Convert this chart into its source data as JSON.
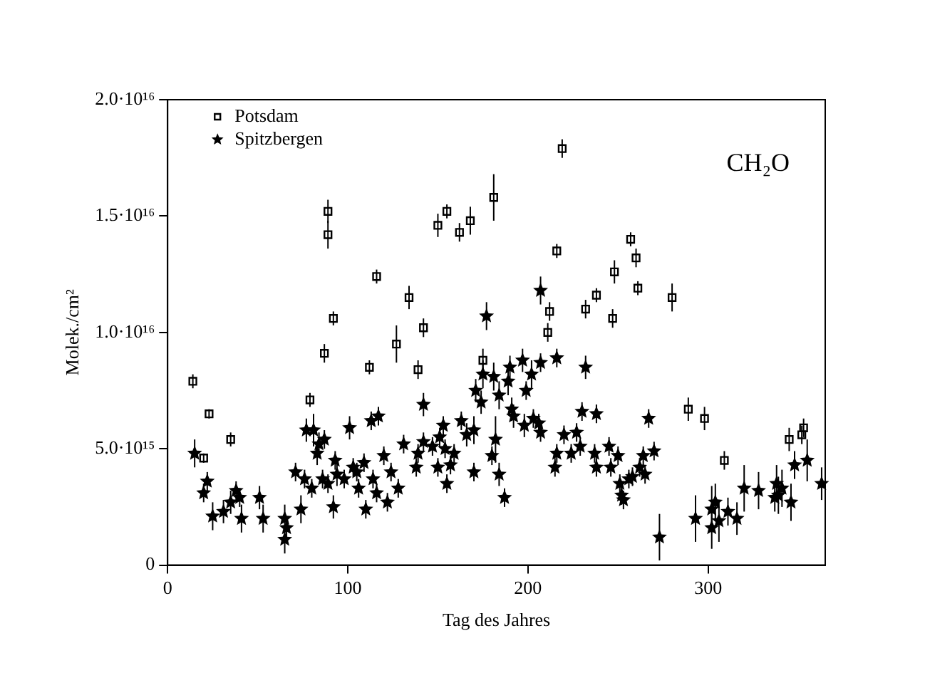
{
  "chart_data": {
    "type": "scatter",
    "xlabel": "Tag des Jahres",
    "ylabel": "Molek./cm²",
    "annotations": [
      "CH₂O"
    ],
    "xlim": [
      0,
      365
    ],
    "xticks": [
      0,
      100,
      200,
      300
    ],
    "ylim": [
      0,
      2e+16
    ],
    "yticks": [
      0,
      {
        "value": 5000000000000000.0,
        "label": "5.0·10¹⁵"
      },
      {
        "value": 1e+16,
        "label": "1.0·10¹⁶"
      },
      {
        "value": 1.5e+16,
        "label": "1.5·10¹⁶"
      },
      {
        "value": 2e+16,
        "label": "2.0·10¹⁶"
      }
    ],
    "grid": false,
    "legend": "top left",
    "series": [
      {
        "name": "Potsdam",
        "color": "#000000",
        "marker": "square",
        "x": [
          14,
          20,
          23,
          35,
          79,
          87,
          89,
          89,
          92,
          112,
          116,
          127,
          134,
          139,
          142,
          150,
          155,
          162,
          168,
          175,
          181,
          211,
          212,
          216,
          219,
          232,
          238,
          247,
          248,
          257,
          260,
          261,
          280,
          289,
          298,
          309,
          345,
          352,
          353
        ],
        "values": [
          7900000000000000.0,
          4600000000000000.0,
          6500000000000000.0,
          5400000000000000.0,
          7100000000000000.0,
          9100000000000000.0,
          1.52e+16,
          1.42e+16,
          1.06e+16,
          8500000000000000.0,
          1.24e+16,
          9500000000000000.0,
          1.15e+16,
          8400000000000000.0,
          1.02e+16,
          1.46e+16,
          1.52e+16,
          1.43e+16,
          1.48e+16,
          8800000000000000.0,
          1.58e+16,
          1e+16,
          1.09e+16,
          1.35e+16,
          1.79e+16,
          1.1e+16,
          1.16e+16,
          1.06e+16,
          1.26e+16,
          1.4e+16,
          1.32e+16,
          1.19e+16,
          1.15e+16,
          6700000000000000.0,
          6300000000000000.0,
          4500000000000000.0,
          5400000000000000.0,
          5600000000000000.0,
          5900000000000000.0
        ],
        "errors": [
          300000000000000.0,
          200000000000000.0,
          200000000000000.0,
          300000000000000.0,
          300000000000000.0,
          400000000000000.0,
          500000000000000.0,
          600000000000000.0,
          300000000000000.0,
          300000000000000.0,
          300000000000000.0,
          800000000000000.0,
          500000000000000.0,
          400000000000000.0,
          400000000000000.0,
          500000000000000.0,
          300000000000000.0,
          400000000000000.0,
          600000000000000.0,
          500000000000000.0,
          1000000000000000.0,
          400000000000000.0,
          400000000000000.0,
          300000000000000.0,
          400000000000000.0,
          400000000000000.0,
          300000000000000.0,
          400000000000000.0,
          500000000000000.0,
          300000000000000.0,
          400000000000000.0,
          300000000000000.0,
          600000000000000.0,
          500000000000000.0,
          500000000000000.0,
          400000000000000.0,
          500000000000000.0,
          400000000000000.0,
          400000000000000.0
        ]
      },
      {
        "name": "Spitzbergen",
        "color": "#000000",
        "marker": "star",
        "x": [
          15,
          20,
          22,
          25,
          31,
          35,
          38,
          40,
          41,
          51,
          53,
          65,
          65,
          66,
          71,
          74,
          76,
          77,
          80,
          81,
          83,
          84,
          86,
          87,
          89,
          92,
          93,
          94,
          98,
          101,
          103,
          105,
          106,
          109,
          110,
          113,
          114,
          116,
          117,
          120,
          122,
          124,
          128,
          131,
          138,
          139,
          142,
          142,
          147,
          150,
          151,
          153,
          154,
          155,
          157,
          159,
          163,
          166,
          170,
          170,
          171,
          174,
          175,
          177,
          180,
          181,
          182,
          184,
          184,
          187,
          189,
          190,
          191,
          192,
          197,
          198,
          199,
          202,
          203,
          206,
          207,
          207,
          207,
          215,
          216,
          216,
          220,
          224,
          227,
          229,
          230,
          232,
          237,
          238,
          238,
          245,
          246,
          250,
          251,
          252,
          253,
          256,
          258,
          262,
          264,
          265,
          267,
          270,
          273,
          293,
          302,
          302,
          304,
          306,
          311,
          316,
          320,
          328,
          337,
          338,
          339,
          341,
          346,
          348,
          355,
          363
        ],
        "values": [
          4800000000000000.0,
          3100000000000000.0,
          3600000000000000.0,
          2100000000000000.0,
          2300000000000000.0,
          2700000000000000.0,
          3200000000000000.0,
          2900000000000000.0,
          2000000000000000.0,
          2900000000000000.0,
          2000000000000000.0,
          2000000000000000.0,
          1100000000000000.0,
          1600000000000000.0,
          4000000000000000.0,
          2400000000000000.0,
          3700000000000000.0,
          5800000000000000.0,
          3300000000000000.0,
          5800000000000000.0,
          4800000000000000.0,
          5200000000000000.0,
          3700000000000000.0,
          5400000000000000.0,
          3500000000000000.0,
          2500000000000000.0,
          4500000000000000.0,
          3900000000000000.0,
          3700000000000000.0,
          5900000000000000.0,
          4200000000000000.0,
          4000000000000000.0,
          3300000000000000.0,
          4400000000000000.0,
          2400000000000000.0,
          6200000000000000.0,
          3700000000000000.0,
          3100000000000000.0,
          6400000000000000.0,
          4700000000000000.0,
          2700000000000000.0,
          4000000000000000.0,
          3300000000000000.0,
          5200000000000000.0,
          4200000000000000.0,
          4800000000000000.0,
          5300000000000000.0,
          6900000000000000.0,
          5100000000000000.0,
          4200000000000000.0,
          5500000000000000.0,
          6000000000000000.0,
          5000000000000000.0,
          3500000000000000.0,
          4300000000000000.0,
          4800000000000000.0,
          6200000000000000.0,
          5600000000000000.0,
          5800000000000000.0,
          4000000000000000.0,
          7500000000000000.0,
          7000000000000000.0,
          8200000000000000.0,
          1.07e+16,
          4700000000000000.0,
          8100000000000000.0,
          5400000000000000.0,
          3900000000000000.0,
          7300000000000000.0,
          2900000000000000.0,
          7900000000000000.0,
          8500000000000000.0,
          6700000000000000.0,
          6400000000000000.0,
          8800000000000000.0,
          6000000000000000.0,
          7500000000000000.0,
          8200000000000000.0,
          6300000000000000.0,
          6100000000000000.0,
          8700000000000000.0,
          1.18e+16,
          5700000000000000.0,
          4200000000000000.0,
          4800000000000000.0,
          8900000000000000.0,
          5600000000000000.0,
          4800000000000000.0,
          5700000000000000.0,
          5100000000000000.0,
          6600000000000000.0,
          8500000000000000.0,
          4800000000000000.0,
          4200000000000000.0,
          6500000000000000.0,
          5100000000000000.0,
          4200000000000000.0,
          4700000000000000.0,
          3500000000000000.0,
          3000000000000000.0,
          2800000000000000.0,
          3700000000000000.0,
          3800000000000000.0,
          4200000000000000.0,
          4700000000000000.0,
          3900000000000000.0,
          6300000000000000.0,
          4900000000000000.0,
          1200000000000000.0,
          2000000000000000.0,
          2400000000000000.0,
          1600000000000000.0,
          2700000000000000.0,
          1900000000000000.0,
          2300000000000000.0,
          2000000000000000.0,
          3300000000000000.0,
          3200000000000000.0,
          2900000000000000.0,
          3500000000000000.0,
          3000000000000000.0,
          3300000000000000.0,
          2700000000000000.0,
          4300000000000000.0,
          4500000000000000.0,
          3500000000000000.0
        ],
        "errors": [
          600000000000000.0,
          400000000000000.0,
          400000000000000.0,
          600000000000000.0,
          500000000000000.0,
          500000000000000.0,
          400000000000000.0,
          400000000000000.0,
          600000000000000.0,
          500000000000000.0,
          600000000000000.0,
          600000000000000.0,
          600000000000000.0,
          500000000000000.0,
          400000000000000.0,
          600000000000000.0,
          400000000000000.0,
          500000000000000.0,
          400000000000000.0,
          700000000000000.0,
          500000000000000.0,
          500000000000000.0,
          400000000000000.0,
          400000000000000.0,
          400000000000000.0,
          500000000000000.0,
          400000000000000.0,
          500000000000000.0,
          400000000000000.0,
          500000000000000.0,
          400000000000000.0,
          400000000000000.0,
          400000000000000.0,
          400000000000000.0,
          400000000000000.0,
          400000000000000.0,
          400000000000000.0,
          400000000000000.0,
          400000000000000.0,
          400000000000000.0,
          400000000000000.0,
          400000000000000.0,
          400000000000000.0,
          400000000000000.0,
          400000000000000.0,
          400000000000000.0,
          400000000000000.0,
          500000000000000.0,
          400000000000000.0,
          400000000000000.0,
          400000000000000.0,
          400000000000000.0,
          400000000000000.0,
          400000000000000.0,
          400000000000000.0,
          400000000000000.0,
          400000000000000.0,
          500000000000000.0,
          600000000000000.0,
          400000000000000.0,
          500000000000000.0,
          500000000000000.0,
          600000000000000.0,
          600000000000000.0,
          400000000000000.0,
          600000000000000.0,
          1000000000000000.0,
          500000000000000.0,
          600000000000000.0,
          400000000000000.0,
          600000000000000.0,
          500000000000000.0,
          500000000000000.0,
          500000000000000.0,
          500000000000000.0,
          500000000000000.0,
          400000000000000.0,
          600000000000000.0,
          400000000000000.0,
          400000000000000.0,
          400000000000000.0,
          600000000000000.0,
          400000000000000.0,
          400000000000000.0,
          400000000000000.0,
          400000000000000.0,
          400000000000000.0,
          400000000000000.0,
          400000000000000.0,
          400000000000000.0,
          400000000000000.0,
          500000000000000.0,
          400000000000000.0,
          400000000000000.0,
          400000000000000.0,
          400000000000000.0,
          400000000000000.0,
          400000000000000.0,
          400000000000000.0,
          400000000000000.0,
          400000000000000.0,
          400000000000000.0,
          400000000000000.0,
          400000000000000.0,
          400000000000000.0,
          400000000000000.0,
          400000000000000.0,
          400000000000000.0,
          1000000000000000.0,
          1000000000000000.0,
          1000000000000000.0,
          900000000000000.0,
          800000000000000.0,
          900000000000000.0,
          600000000000000.0,
          700000000000000.0,
          1000000000000000.0,
          800000000000000.0,
          600000000000000.0,
          800000000000000.0,
          800000000000000.0,
          800000000000000.0,
          800000000000000.0,
          600000000000000.0,
          900000000000000.0,
          700000000000000.0
        ]
      }
    ]
  }
}
